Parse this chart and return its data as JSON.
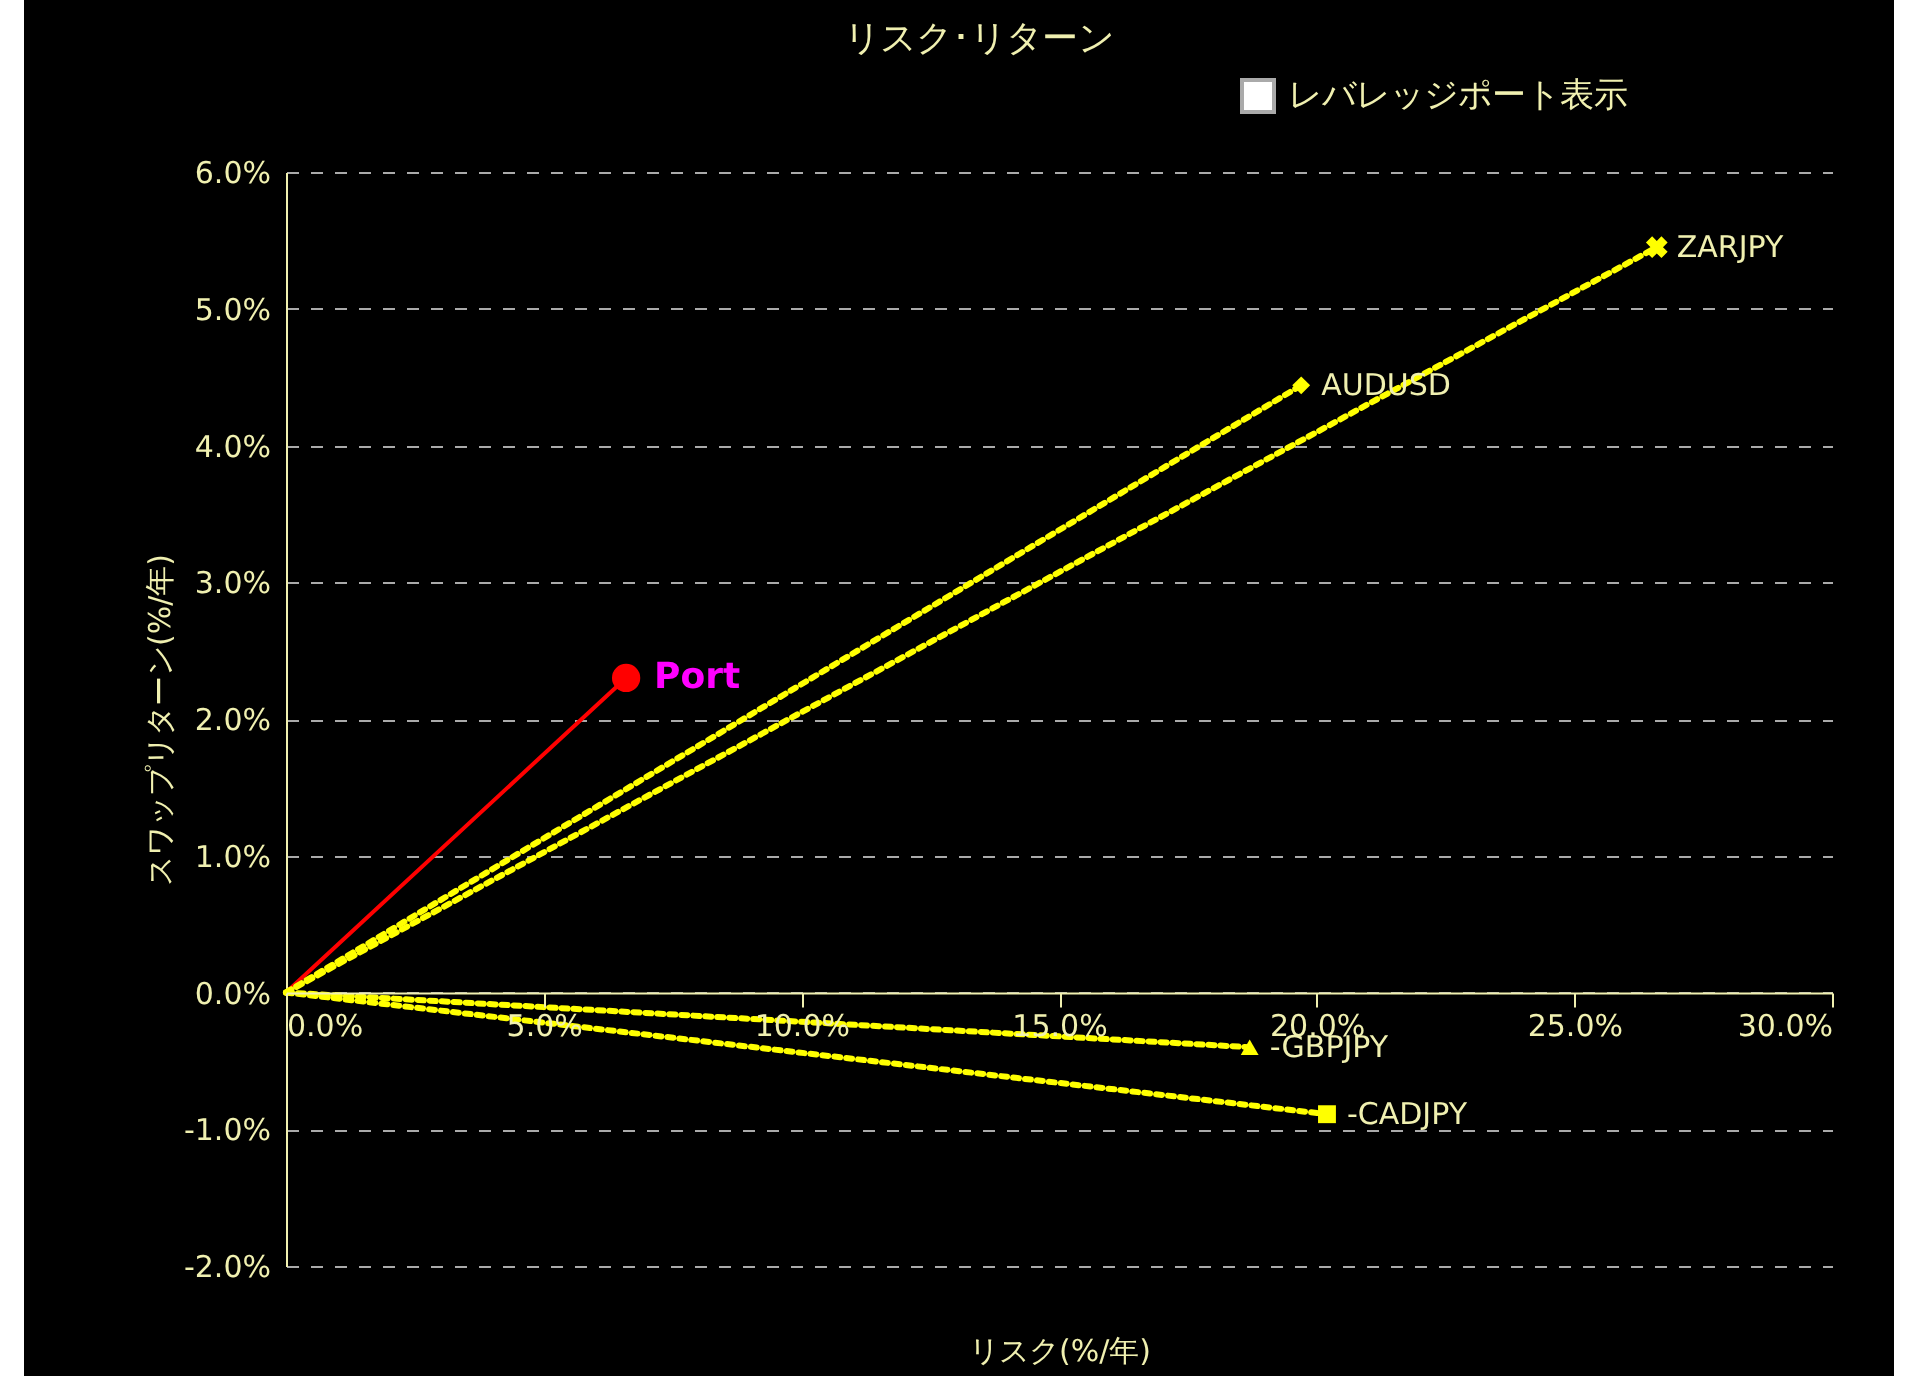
{
  "chart_data": {
    "type": "line",
    "title": "リスク･リターン",
    "xlabel": "リスク(%/年)",
    "ylabel": "スワップリターン(%/年)",
    "annotations": [
      "レバレッジポート表示"
    ],
    "xlim": [
      0,
      30
    ],
    "ylim": [
      -2,
      6
    ],
    "xticks": [
      {
        "value": 0,
        "label": "0.0%"
      },
      {
        "value": 5,
        "label": "5.0%"
      },
      {
        "value": 10,
        "label": "10.0%"
      },
      {
        "value": 15,
        "label": "15.0%"
      },
      {
        "value": 20,
        "label": "20.0%"
      },
      {
        "value": 25,
        "label": "25.0%"
      },
      {
        "value": 30,
        "label": "30.0%"
      }
    ],
    "yticks": [
      {
        "value": -2,
        "label": "-2.0%"
      },
      {
        "value": -1,
        "label": "-1.0%"
      },
      {
        "value": 0,
        "label": "0.0%"
      },
      {
        "value": 1,
        "label": "1.0%"
      },
      {
        "value": 2,
        "label": "2.0%"
      },
      {
        "value": 3,
        "label": "3.0%"
      },
      {
        "value": 4,
        "label": "4.0%"
      },
      {
        "value": 5,
        "label": "5.0%"
      },
      {
        "value": 6,
        "label": "6.0%"
      }
    ],
    "grid": "y",
    "legend": false,
    "series": [
      {
        "name": "Port",
        "color": "#ff0000",
        "x": [
          0,
          6.6
        ],
        "values": [
          0,
          2.3
        ],
        "marker": "circle",
        "line_style": "solid"
      },
      {
        "name": "ZARJPY",
        "color": "#ffff00",
        "x": [
          0,
          26.6
        ],
        "values": [
          0,
          5.45
        ],
        "marker": "cross",
        "line_style": "dotted"
      },
      {
        "name": "AUDUSD",
        "color": "#ffff00",
        "x": [
          0,
          19.7
        ],
        "values": [
          0,
          4.44
        ],
        "marker": "diamond",
        "line_style": "dotted"
      },
      {
        "name": "-GBPJPY",
        "color": "#ffff00",
        "x": [
          0,
          18.7
        ],
        "values": [
          0,
          -0.4
        ],
        "marker": "triangle",
        "line_style": "dotted"
      },
      {
        "name": "-CADJPY",
        "color": "#ffff00",
        "x": [
          0,
          20.2
        ],
        "values": [
          0,
          -0.89
        ],
        "marker": "square",
        "line_style": "dotted"
      }
    ]
  }
}
